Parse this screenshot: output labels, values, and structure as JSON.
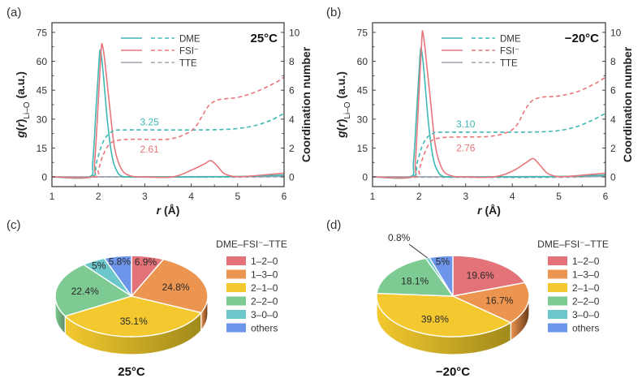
{
  "colors": {
    "DME": "#3db8b4",
    "FSI": "#e8767c",
    "TTE": "#9aa3ad",
    "pie": [
      "#e37378",
      "#ec9550",
      "#f3c92f",
      "#7dcb92",
      "#6cc7cb",
      "#6d95ea"
    ],
    "pie_side": [
      "#8a3c3c",
      "#6b3a1a",
      "#a08a1a",
      "#5a8c68",
      "#4a8e90",
      "#3f5ea8"
    ]
  },
  "chart_data": [
    {
      "panel": "(a)",
      "type": "line",
      "condition": "25°C",
      "xlabel": "r (Å)",
      "ylabel": "g(r)Li–O (a.u.)",
      "y2label": "Coordination number",
      "xlim": [
        1,
        6
      ],
      "ylim": [
        -5,
        80
      ],
      "y2lim": [
        -0.667,
        10.667
      ],
      "xticks": [
        "1",
        "2",
        "3",
        "4",
        "5",
        "6"
      ],
      "yticks": [
        "0",
        "15",
        "30",
        "45",
        "60",
        "75"
      ],
      "y2ticks": [
        "0",
        "2",
        "4",
        "6",
        "8",
        "10"
      ],
      "legend": [
        "DME",
        "FSI⁻",
        "TTE"
      ],
      "legend_position": "top-center",
      "annotations": [
        {
          "text": "3.25",
          "series": "DME",
          "x": 3.1,
          "y_cn": 3.8
        },
        {
          "text": "2.61",
          "series": "FSI",
          "x": 3.1,
          "y_cn": 1.9
        }
      ],
      "series": [
        {
          "name": "DME",
          "kind": "rdf",
          "points": [
            [
              1,
              0
            ],
            [
              1.8,
              0
            ],
            [
              1.88,
              8
            ],
            [
              1.95,
              35
            ],
            [
              2.02,
              62
            ],
            [
              2.05,
              65
            ],
            [
              2.1,
              55
            ],
            [
              2.2,
              28
            ],
            [
              2.3,
              10
            ],
            [
              2.4,
              3
            ],
            [
              2.5,
              0.5
            ],
            [
              2.7,
              0
            ],
            [
              4,
              0
            ],
            [
              5,
              0.2
            ],
            [
              6,
              1
            ]
          ]
        },
        {
          "name": "FSI",
          "kind": "rdf",
          "points": [
            [
              1,
              0
            ],
            [
              1.85,
              0
            ],
            [
              1.92,
              8
            ],
            [
              2.0,
              40
            ],
            [
              2.06,
              66
            ],
            [
              2.09,
              68
            ],
            [
              2.14,
              60
            ],
            [
              2.25,
              35
            ],
            [
              2.35,
              15
            ],
            [
              2.5,
              4
            ],
            [
              2.7,
              0.5
            ],
            [
              3,
              0
            ],
            [
              3.6,
              0
            ],
            [
              4.0,
              3.5
            ],
            [
              4.3,
              7
            ],
            [
              4.42,
              8.5
            ],
            [
              4.55,
              6
            ],
            [
              4.7,
              2
            ],
            [
              4.9,
              0.3
            ],
            [
              5.2,
              0.3
            ],
            [
              6,
              2
            ]
          ]
        },
        {
          "name": "TTE",
          "kind": "rdf",
          "points": [
            [
              1,
              0
            ],
            [
              6,
              0.3
            ]
          ]
        },
        {
          "name": "DME",
          "kind": "cn",
          "points": [
            [
              1,
              0
            ],
            [
              1.85,
              0
            ],
            [
              1.95,
              0.9
            ],
            [
              2.05,
              2.0
            ],
            [
              2.15,
              2.7
            ],
            [
              2.3,
              3.15
            ],
            [
              2.5,
              3.25
            ],
            [
              4,
              3.25
            ],
            [
              4.8,
              3.3
            ],
            [
              5.3,
              3.5
            ],
            [
              5.7,
              3.9
            ],
            [
              6,
              4.4
            ]
          ]
        },
        {
          "name": "FSI",
          "kind": "cn",
          "points": [
            [
              1,
              0
            ],
            [
              1.92,
              0
            ],
            [
              2.0,
              0.5
            ],
            [
              2.1,
              1.5
            ],
            [
              2.25,
              2.3
            ],
            [
              2.45,
              2.55
            ],
            [
              2.8,
              2.61
            ],
            [
              3.5,
              2.61
            ],
            [
              3.9,
              3.0
            ],
            [
              4.1,
              3.5
            ],
            [
              4.25,
              4.3
            ],
            [
              4.4,
              5.0
            ],
            [
              4.6,
              5.35
            ],
            [
              5.0,
              5.5
            ],
            [
              5.4,
              5.9
            ],
            [
              5.8,
              6.5
            ],
            [
              6,
              6.9
            ]
          ]
        },
        {
          "name": "TTE",
          "kind": "cn",
          "points": [
            [
              1,
              0
            ],
            [
              5.6,
              0
            ],
            [
              6,
              0.15
            ]
          ]
        }
      ]
    },
    {
      "panel": "(b)",
      "type": "line",
      "condition": "−20°C",
      "xlabel": "r (Å)",
      "ylabel": "g(r)Li–O (a.u.)",
      "y2label": "Coordination number",
      "xlim": [
        1,
        6
      ],
      "ylim": [
        -5,
        80
      ],
      "y2lim": [
        -0.667,
        10.667
      ],
      "xticks": [
        "1",
        "2",
        "3",
        "4",
        "5",
        "6"
      ],
      "yticks": [
        "0",
        "15",
        "30",
        "45",
        "60",
        "75"
      ],
      "y2ticks": [
        "0",
        "2",
        "4",
        "6",
        "8",
        "10"
      ],
      "legend": [
        "DME",
        "FSI⁻",
        "TTE"
      ],
      "legend_position": "top-center",
      "annotations": [
        {
          "text": "3.10",
          "series": "DME",
          "x": 3.0,
          "y_cn": 3.65
        },
        {
          "text": "2.76",
          "series": "FSI",
          "x": 3.0,
          "y_cn": 2.0
        }
      ],
      "series": [
        {
          "name": "DME",
          "kind": "rdf",
          "points": [
            [
              1,
              0
            ],
            [
              1.8,
              0
            ],
            [
              1.88,
              8
            ],
            [
              1.95,
              35
            ],
            [
              2.02,
              63
            ],
            [
              2.05,
              66
            ],
            [
              2.1,
              56
            ],
            [
              2.2,
              28
            ],
            [
              2.3,
              10
            ],
            [
              2.4,
              3
            ],
            [
              2.5,
              0.5
            ],
            [
              2.7,
              0
            ],
            [
              4,
              0
            ],
            [
              5,
              0.2
            ],
            [
              6,
              1
            ]
          ]
        },
        {
          "name": "FSI",
          "kind": "rdf",
          "points": [
            [
              1,
              0
            ],
            [
              1.85,
              0
            ],
            [
              1.92,
              8
            ],
            [
              2.0,
              45
            ],
            [
              2.06,
              72
            ],
            [
              2.08,
              75
            ],
            [
              2.13,
              66
            ],
            [
              2.25,
              38
            ],
            [
              2.35,
              16
            ],
            [
              2.5,
              4
            ],
            [
              2.7,
              0.5
            ],
            [
              3,
              0
            ],
            [
              3.6,
              0
            ],
            [
              4.0,
              3
            ],
            [
              4.3,
              7.5
            ],
            [
              4.45,
              9.5
            ],
            [
              4.58,
              6.5
            ],
            [
              4.75,
              2
            ],
            [
              4.95,
              0.3
            ],
            [
              5.2,
              0.3
            ],
            [
              6,
              2
            ]
          ]
        },
        {
          "name": "TTE",
          "kind": "rdf",
          "points": [
            [
              1,
              0
            ],
            [
              6,
              0.3
            ]
          ]
        },
        {
          "name": "DME",
          "kind": "cn",
          "points": [
            [
              1,
              0
            ],
            [
              1.85,
              0
            ],
            [
              1.95,
              0.9
            ],
            [
              2.05,
              2.0
            ],
            [
              2.15,
              2.65
            ],
            [
              2.3,
              3.0
            ],
            [
              2.5,
              3.1
            ],
            [
              4,
              3.1
            ],
            [
              4.8,
              3.15
            ],
            [
              5.3,
              3.4
            ],
            [
              5.7,
              3.9
            ],
            [
              6,
              4.4
            ]
          ]
        },
        {
          "name": "FSI",
          "kind": "cn",
          "points": [
            [
              1,
              0
            ],
            [
              1.92,
              0
            ],
            [
              2.0,
              0.5
            ],
            [
              2.1,
              1.5
            ],
            [
              2.25,
              2.45
            ],
            [
              2.45,
              2.7
            ],
            [
              2.8,
              2.76
            ],
            [
              3.5,
              2.8
            ],
            [
              3.9,
              3.1
            ],
            [
              4.1,
              3.6
            ],
            [
              4.25,
              4.5
            ],
            [
              4.4,
              5.2
            ],
            [
              4.6,
              5.5
            ],
            [
              5.0,
              5.6
            ],
            [
              5.4,
              5.9
            ],
            [
              5.8,
              6.5
            ],
            [
              6,
              6.9
            ]
          ]
        },
        {
          "name": "TTE",
          "kind": "cn",
          "points": [
            [
              1,
              0
            ],
            [
              5.5,
              0
            ],
            [
              6,
              0.5
            ]
          ]
        }
      ]
    },
    {
      "panel": "(c)",
      "type": "pie",
      "condition": "25°C",
      "legend_title": "DME–FSI⁻–TTE",
      "legend_position": "right",
      "labels": [
        "1–2–0",
        "1–3–0",
        "2–1–0",
        "2–2–0",
        "3–0–0",
        "others"
      ],
      "values": [
        6.9,
        24.8,
        35.1,
        22.4,
        5.0,
        5.8
      ],
      "value_labels": [
        "6.9%",
        "24.8%",
        "35.1%",
        "22.4%",
        "5%",
        "5.8%"
      ]
    },
    {
      "panel": "(d)",
      "type": "pie",
      "condition": "−20°C",
      "legend_title": "DME–FSI⁻–TTE",
      "legend_position": "right",
      "labels": [
        "1–2–0",
        "1–3–0",
        "2–1–0",
        "2–2–0",
        "3–0–0",
        "others"
      ],
      "values": [
        19.6,
        16.7,
        39.8,
        18.1,
        0.8,
        5.0
      ],
      "value_labels": [
        "19.6%",
        "16.7%",
        "39.8%",
        "18.1%",
        "0.8%",
        "5%"
      ]
    }
  ]
}
